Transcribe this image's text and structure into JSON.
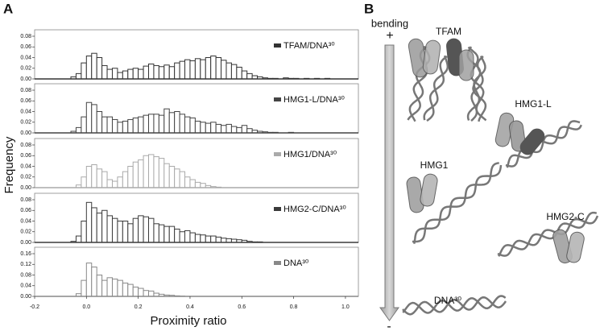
{
  "panel_labels": [
    "A",
    "B"
  ],
  "ylabel": "Frequency",
  "chart_data": [
    {
      "type": "histogram",
      "name": "TFAM/DNA³⁰",
      "color": "#333333",
      "bins": [
        -0.08,
        -0.06,
        -0.04,
        -0.02,
        0,
        0.02,
        0.04,
        0.06,
        0.08,
        0.1,
        0.12,
        0.14,
        0.16,
        0.18,
        0.2,
        0.22,
        0.24,
        0.26,
        0.28,
        0.3,
        0.32,
        0.34,
        0.36,
        0.38,
        0.4,
        0.42,
        0.44,
        0.46,
        0.48,
        0.5,
        0.52,
        0.54,
        0.56,
        0.58,
        0.6,
        0.62,
        0.64,
        0.66,
        0.68,
        0.7,
        0.72,
        0.74,
        0.76,
        0.78,
        0.8,
        0.82,
        0.84,
        0.86,
        0.88,
        0.9,
        0.92,
        0.94,
        0.96,
        0.98,
        1
      ],
      "values": [
        0,
        0.004,
        0.01,
        0.03,
        0.043,
        0.048,
        0.04,
        0.025,
        0.018,
        0.02,
        0.012,
        0.015,
        0.018,
        0.02,
        0.018,
        0.024,
        0.028,
        0.025,
        0.023,
        0.026,
        0.023,
        0.03,
        0.033,
        0.036,
        0.034,
        0.038,
        0.036,
        0.04,
        0.043,
        0.04,
        0.035,
        0.03,
        0.027,
        0.022,
        0.015,
        0.01,
        0.006,
        0.004,
        0.002,
        0.001,
        0.001,
        0,
        0.002,
        0.001,
        0.001,
        0,
        0.001,
        0,
        0.001,
        0,
        0.001,
        0,
        0,
        0
      ],
      "xlim": [
        -0.2,
        1.05
      ],
      "ylim": [
        0,
        0.08
      ],
      "yticks": [
        {
          "value": 0,
          "label": "0.00"
        },
        0.02,
        0.04,
        0.06,
        0.08
      ]
    },
    {
      "type": "histogram",
      "name": "HMG1-L/DNA³⁰",
      "color": "#444444",
      "bins": [
        -0.08,
        -0.06,
        -0.04,
        -0.02,
        0,
        0.02,
        0.04,
        0.06,
        0.08,
        0.1,
        0.12,
        0.14,
        0.16,
        0.18,
        0.2,
        0.22,
        0.24,
        0.26,
        0.28,
        0.3,
        0.32,
        0.34,
        0.36,
        0.38,
        0.4,
        0.42,
        0.44,
        0.46,
        0.48,
        0.5,
        0.52,
        0.54,
        0.56,
        0.58,
        0.6,
        0.62,
        0.64,
        0.66,
        0.68,
        0.7,
        0.72,
        0.74,
        0.76,
        0.78,
        0.8,
        0.82,
        0.84,
        0.86,
        0.88,
        0.9,
        0.92,
        0.94,
        0.96,
        0.98,
        1
      ],
      "values": [
        0,
        0.003,
        0.01,
        0.03,
        0.057,
        0.053,
        0.04,
        0.03,
        0.03,
        0.025,
        0.02,
        0.022,
        0.025,
        0.028,
        0.03,
        0.033,
        0.035,
        0.035,
        0.033,
        0.045,
        0.038,
        0.04,
        0.035,
        0.03,
        0.028,
        0.022,
        0.02,
        0.018,
        0.02,
        0.016,
        0.014,
        0.016,
        0.012,
        0.01,
        0.014,
        0.008,
        0.005,
        0.003,
        0.002,
        0.001,
        0.001,
        0,
        0,
        0.001,
        0,
        0,
        0,
        0,
        0,
        0,
        0,
        0,
        0,
        0
      ],
      "xlim": [
        -0.2,
        1.05
      ],
      "ylim": [
        0,
        0.08
      ],
      "yticks": [
        {
          "value": 0,
          "label": "0.00"
        },
        0.02,
        0.04,
        0.06,
        0.08
      ]
    },
    {
      "type": "histogram",
      "name": "HMG1/DNA³⁰",
      "color": "#aaaaaa",
      "bins": [
        -0.08,
        -0.06,
        -0.04,
        -0.02,
        0,
        0.02,
        0.04,
        0.06,
        0.08,
        0.1,
        0.12,
        0.14,
        0.16,
        0.18,
        0.2,
        0.22,
        0.24,
        0.26,
        0.28,
        0.3,
        0.32,
        0.34,
        0.36,
        0.38,
        0.4,
        0.42,
        0.44,
        0.46,
        0.48,
        0.5,
        0.52,
        0.54,
        0.56,
        0.58,
        0.6,
        0.62,
        0.64,
        0.66,
        0.68,
        0.7,
        0.72,
        0.74,
        0.76,
        0.78,
        0.8,
        0.82,
        0.84,
        0.86,
        0.88,
        0.9,
        0.92,
        0.94,
        0.96,
        0.98,
        1
      ],
      "values": [
        0,
        0,
        0.005,
        0.02,
        0.04,
        0.043,
        0.035,
        0.03,
        0.015,
        0.012,
        0.02,
        0.03,
        0.04,
        0.048,
        0.052,
        0.06,
        0.062,
        0.058,
        0.055,
        0.045,
        0.04,
        0.035,
        0.03,
        0.02,
        0.015,
        0.01,
        0.008,
        0.004,
        0.002,
        0.001,
        0,
        0,
        0,
        0,
        0,
        0,
        0,
        0,
        0,
        0,
        0,
        0,
        0,
        0,
        0,
        0,
        0,
        0,
        0,
        0,
        0,
        0,
        0,
        0
      ],
      "xlim": [
        -0.2,
        1.05
      ],
      "ylim": [
        0,
        0.08
      ],
      "yticks": [
        {
          "value": 0,
          "label": "0.00"
        },
        0.02,
        0.04,
        0.06,
        0.08
      ]
    },
    {
      "type": "histogram",
      "name": "HMG2-C/DNA³⁰",
      "color": "#3a3a3a",
      "bins": [
        -0.08,
        -0.06,
        -0.04,
        -0.02,
        0,
        0.02,
        0.04,
        0.06,
        0.08,
        0.1,
        0.12,
        0.14,
        0.16,
        0.18,
        0.2,
        0.22,
        0.24,
        0.26,
        0.28,
        0.3,
        0.32,
        0.34,
        0.36,
        0.38,
        0.4,
        0.42,
        0.44,
        0.46,
        0.48,
        0.5,
        0.52,
        0.54,
        0.56,
        0.58,
        0.6,
        0.62,
        0.64,
        0.66,
        0.68,
        0.7,
        0.72,
        0.74,
        0.76,
        0.78,
        0.8,
        0.82,
        0.84,
        0.86,
        0.88,
        0.9,
        0.92,
        0.94,
        0.96,
        0.98,
        1
      ],
      "values": [
        0,
        0.002,
        0.012,
        0.04,
        0.075,
        0.065,
        0.055,
        0.06,
        0.05,
        0.045,
        0.04,
        0.04,
        0.035,
        0.045,
        0.05,
        0.048,
        0.045,
        0.035,
        0.033,
        0.03,
        0.03,
        0.025,
        0.02,
        0.022,
        0.018,
        0.015,
        0.014,
        0.012,
        0.012,
        0.01,
        0.008,
        0.007,
        0.006,
        0.005,
        0.004,
        0.002,
        0.001,
        0.001,
        0,
        0,
        0,
        0,
        0,
        0,
        0,
        0,
        0,
        0,
        0,
        0,
        0,
        0,
        0,
        0
      ],
      "xlim": [
        -0.2,
        1.05
      ],
      "ylim": [
        0,
        0.08
      ],
      "yticks": [
        {
          "value": 0,
          "label": "0.00"
        },
        0.02,
        0.04,
        0.06,
        0.08
      ]
    },
    {
      "type": "histogram",
      "name": "DNA³⁰",
      "color": "#888888",
      "bins": [
        -0.08,
        -0.06,
        -0.04,
        -0.02,
        0,
        0.02,
        0.04,
        0.06,
        0.08,
        0.1,
        0.12,
        0.14,
        0.16,
        0.18,
        0.2,
        0.22,
        0.24,
        0.26,
        0.28,
        0.3,
        0.32,
        0.34,
        0.36,
        0.38,
        0.4,
        0.42,
        0.44,
        0.46,
        0.48,
        0.5,
        0.52,
        0.54,
        0.56,
        0.58,
        0.6,
        0.62,
        0.64,
        0.66,
        0.68,
        0.7,
        0.72,
        0.74,
        0.76,
        0.78,
        0.8,
        0.82,
        0.84,
        0.86,
        0.88,
        0.9,
        0.92,
        0.94,
        0.96,
        0.98,
        1
      ],
      "values": [
        0,
        0,
        0.01,
        0.06,
        0.125,
        0.11,
        0.08,
        0.06,
        0.07,
        0.065,
        0.06,
        0.05,
        0.045,
        0.035,
        0.03,
        0.022,
        0.02,
        0.012,
        0.008,
        0.005,
        0.004,
        0.002,
        0.001,
        0,
        0,
        0,
        0,
        0,
        0,
        0,
        0,
        0,
        0,
        0,
        0,
        0,
        0,
        0,
        0,
        0,
        0,
        0,
        0,
        0,
        0,
        0,
        0,
        0,
        0,
        0,
        0,
        0,
        0,
        0
      ],
      "xlim": [
        -0.2,
        1.05
      ],
      "ylim": [
        0,
        0.16
      ],
      "yticks": [
        {
          "value": 0,
          "label": "0.00"
        },
        0.04,
        0.08,
        0.12,
        0.16
      ],
      "xlabel": "Proximity ratio",
      "xticks": [
        -0.2,
        {
          "value": 0,
          "label": "0.0"
        },
        0.2,
        0.4,
        0.6,
        0.8,
        {
          "value": 1,
          "label": "1.0"
        }
      ]
    }
  ],
  "diagram": {
    "axis_label": "bending",
    "plus": "+",
    "minus": "-",
    "labels": [
      "TFAM",
      "HMG1-L",
      "HMG1",
      "HMG2-C",
      "DNA³⁰"
    ]
  }
}
